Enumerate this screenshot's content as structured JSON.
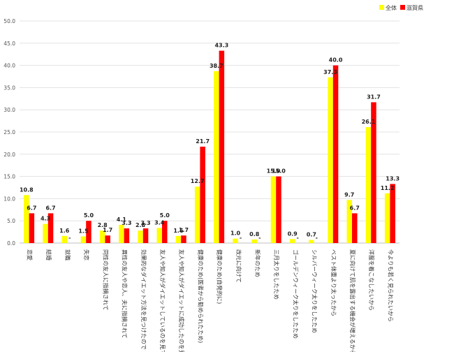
{
  "chart_data": {
    "type": "bar",
    "ylim": [
      0,
      50
    ],
    "yticks": [
      "0.0",
      "5.0",
      "10.0",
      "15.0",
      "20.0",
      "25.0",
      "30.0",
      "35.0",
      "40.0",
      "45.0",
      "50.0"
    ],
    "grid": true,
    "legend_position": "top-right",
    "series": [
      {
        "name": "全体",
        "color": "#FFFF00",
        "values": [
          10.8,
          4.3,
          1.6,
          1.5,
          2.8,
          4.1,
          2.8,
          3.4,
          1.6,
          12.7,
          38.7,
          1.0,
          0.8,
          15.0,
          0.9,
          0.7,
          37.3,
          9.7,
          26.1,
          11.2
        ],
        "labels": [
          "10.8",
          "4.3",
          "1.6",
          "1.5",
          "2.8",
          "4.1",
          "2.8",
          "3.4",
          "1.6",
          "12.7",
          "38.7",
          "1.0",
          "0.8",
          "15.0",
          "0.9",
          "0.7",
          "37.3",
          "9.7",
          "26.1",
          "11.2"
        ]
      },
      {
        "name": "滋賀県",
        "color": "#FF0000",
        "values": [
          6.7,
          6.7,
          0,
          5.0,
          1.7,
          3.3,
          3.3,
          5.0,
          1.7,
          21.7,
          43.3,
          0,
          0,
          15.0,
          0,
          0,
          40.0,
          6.7,
          31.7,
          13.3
        ],
        "labels": [
          "6.7",
          "6.7",
          "-",
          "5.0",
          "1.7",
          "3.3",
          "3.3",
          "5.0",
          "1.7",
          "21.7",
          "43.3",
          "-",
          "-",
          "15.0",
          "-",
          "-",
          "40.0",
          "6.7",
          "31.7",
          "13.3"
        ]
      }
    ],
    "categories": [
      "恋愛",
      "結婚",
      "就職",
      "失恋",
      "同性の友人に指摘されて",
      "異性の友人や恋人、夫に指摘されて",
      "効果的なダイエット方法を見つけたので",
      "友人や知人がダイエットしているのを見て",
      "友人や知人がダイエットに成功したのを見て",
      "健康のため(医者から勧められたため)",
      "健康のため(自発的に)",
      "改元に向けて",
      "新年のため",
      "三月太りをしたため",
      "ゴールデンウィーク太りをしたため",
      "シルバーウィーク太りをしたため",
      "ベスト体重より太ったから",
      "夏に向けて肌を露出する機会が増えるから",
      "洋服を着こなしたいから",
      "今よりも若く見られたいから"
    ]
  }
}
